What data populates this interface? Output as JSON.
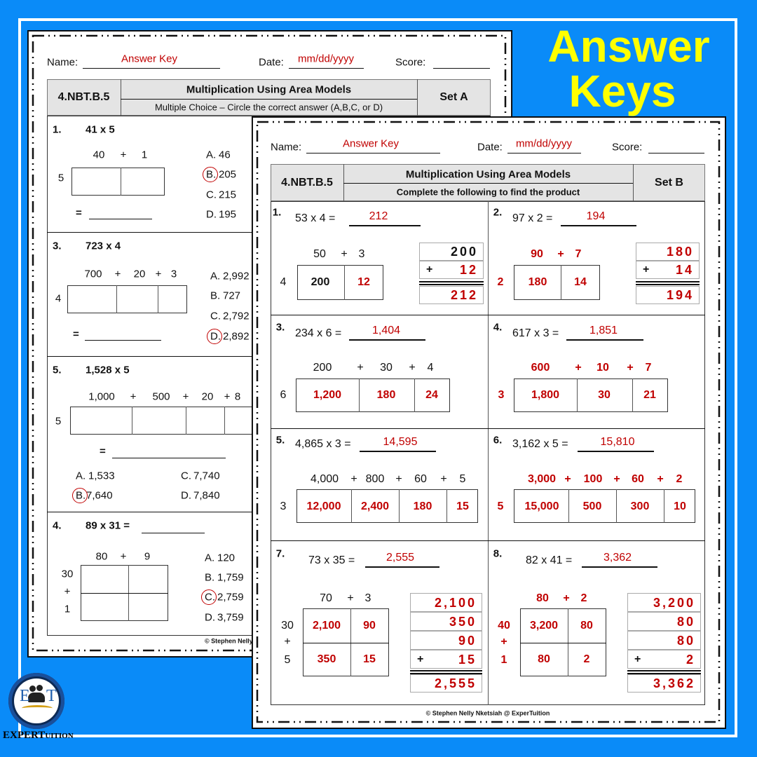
{
  "banner": {
    "title_line1": "Answer",
    "title_line2": "Keys"
  },
  "logo": {
    "letters_left": "E",
    "letters_right": "T",
    "brand_main": "EXPERT",
    "brand_small": "UITION"
  },
  "colors": {
    "background": "#0a8bf8",
    "title": "#ffff00",
    "answer": "#c00000",
    "header_fill": "#e4e4e4"
  },
  "sheet_a": {
    "name_label": "Name:",
    "name_value": "Answer Key",
    "date_label": "Date:",
    "date_value": "mm/dd/yyyy",
    "score_label": "Score:",
    "standard": "4.NBT.B.5",
    "title": "Multiplication Using Area Models",
    "subtitle": "Multiple Choice – Circle the correct answer (A,B,C, or D)",
    "set": "Set A",
    "questions": [
      {
        "num": "1.",
        "problem": "41 x 5",
        "parts": [
          "40",
          "+",
          "1"
        ],
        "factors": [
          "5"
        ],
        "equals": "=",
        "options": [
          {
            "letter": "A.",
            "value": "46"
          },
          {
            "letter": "B.",
            "value": "205"
          },
          {
            "letter": "C.",
            "value": "215"
          },
          {
            "letter": "D.",
            "value": "195"
          }
        ],
        "correct": 1
      },
      {
        "num": "3.",
        "problem": "723 x 4",
        "parts": [
          "700",
          "+",
          "20",
          "+",
          "3"
        ],
        "factors": [
          "4"
        ],
        "equals": "=",
        "options": [
          {
            "letter": "A.",
            "value": "2,992"
          },
          {
            "letter": "B.",
            "value": "727"
          },
          {
            "letter": "C.",
            "value": "2,792"
          },
          {
            "letter": "D.",
            "value": "2,892"
          }
        ],
        "correct": 3
      },
      {
        "num": "5.",
        "problem": "1,528 x 5",
        "parts": [
          "1,000",
          "+",
          "500",
          "+",
          "20",
          "+",
          "8"
        ],
        "factors": [
          "5"
        ],
        "equals": "=",
        "options": [
          {
            "letter": "A.",
            "value": "1,533"
          },
          {
            "letter": "C.",
            "value": "7,740"
          },
          {
            "letter": "B.",
            "value": "7,640"
          },
          {
            "letter": "D.",
            "value": "7,840"
          }
        ],
        "correct": 2
      },
      {
        "num": "4.",
        "problem": "89 x 31 =",
        "parts": [
          "80",
          "+",
          "9"
        ],
        "factors": [
          "30",
          "+",
          "1"
        ],
        "options": [
          {
            "letter": "A.",
            "value": "120"
          },
          {
            "letter": "B.",
            "value": "1,759"
          },
          {
            "letter": "C.",
            "value": "2,759"
          },
          {
            "letter": "D.",
            "value": "3,759"
          }
        ],
        "correct": 2
      }
    ],
    "footer": "© Stephen Nelly"
  },
  "sheet_b": {
    "name_label": "Name:",
    "name_value": "Answer Key",
    "date_label": "Date:",
    "date_value": "mm/dd/yyyy",
    "score_label": "Score:",
    "standard": "4.NBT.B.5",
    "title": "Multiplication Using Area Models",
    "subtitle": "Complete the following to find the product",
    "set": "Set B",
    "questions": [
      {
        "num": "1.",
        "problem": "53 x 4 =",
        "answer": "212",
        "parts": [
          "50",
          "+",
          "3"
        ],
        "parts_red": false,
        "factors": [
          "4"
        ],
        "cells": [
          "200",
          "12"
        ],
        "given_cells": [
          0
        ],
        "stack": {
          "addends": [
            "200",
            "12"
          ],
          "given": [
            0
          ],
          "plus": "+",
          "sum": "212"
        }
      },
      {
        "num": "2.",
        "problem": "97 x 2 =",
        "answer": "194",
        "parts": [
          "90",
          "+",
          "7"
        ],
        "parts_red": true,
        "factors": [
          "2"
        ],
        "cells": [
          "180",
          "14"
        ],
        "given_cells": [],
        "stack": {
          "addends": [
            "180",
            "14"
          ],
          "given": [],
          "plus": "+",
          "sum": "194"
        }
      },
      {
        "num": "3.",
        "problem": "234 x 6 =",
        "answer": "1,404",
        "parts": [
          "200",
          "+",
          "30",
          "+",
          "4"
        ],
        "parts_red": false,
        "factors": [
          "6"
        ],
        "cells": [
          "1,200",
          "180",
          "24"
        ],
        "given_cells": []
      },
      {
        "num": "4.",
        "problem": "617 x 3 =",
        "answer": "1,851",
        "parts": [
          "600",
          "+",
          "10",
          "+",
          "7"
        ],
        "parts_red": true,
        "factors": [
          "3"
        ],
        "cells": [
          "1,800",
          "30",
          "21"
        ],
        "given_cells": []
      },
      {
        "num": "5.",
        "problem": "4,865 x 3 =",
        "answer": "14,595",
        "parts": [
          "4,000",
          "+",
          "800",
          "+",
          "60",
          "+",
          "5"
        ],
        "parts_red": false,
        "factors": [
          "3"
        ],
        "cells": [
          "12,000",
          "2,400",
          "180",
          "15"
        ],
        "given_cells": []
      },
      {
        "num": "6.",
        "problem": "3,162 x 5 =",
        "answer": "15,810",
        "parts": [
          "3,000",
          "+",
          "100",
          "+",
          "60",
          "+",
          "2"
        ],
        "parts_red": true,
        "factors": [
          "5"
        ],
        "cells": [
          "15,000",
          "500",
          "300",
          "10"
        ],
        "given_cells": []
      },
      {
        "num": "7.",
        "problem": "73 x 35 =",
        "answer": "2,555",
        "parts": [
          "70",
          "+",
          "3"
        ],
        "parts_red": false,
        "factors": [
          "30",
          "+",
          "5"
        ],
        "cells": [
          "2,100",
          "90",
          "350",
          "15"
        ],
        "given_cells": [],
        "stack": {
          "addends": [
            "2,100",
            "350",
            "90",
            "15"
          ],
          "given": [],
          "plus": "+",
          "sum": "2,555"
        }
      },
      {
        "num": "8.",
        "problem": "82 x 41 =",
        "answer": "3,362",
        "parts": [
          "80",
          "+",
          "2"
        ],
        "parts_red": true,
        "factors": [
          "40",
          "+",
          "1"
        ],
        "cells": [
          "3,200",
          "80",
          "80",
          "2"
        ],
        "given_cells": [],
        "stack": {
          "addends": [
            "3,200",
            "80",
            "80",
            "2"
          ],
          "given": [],
          "plus": "+",
          "sum": "3,362"
        }
      }
    ],
    "footer": "© Stephen Nelly Nketsiah @ ExperTuition"
  }
}
